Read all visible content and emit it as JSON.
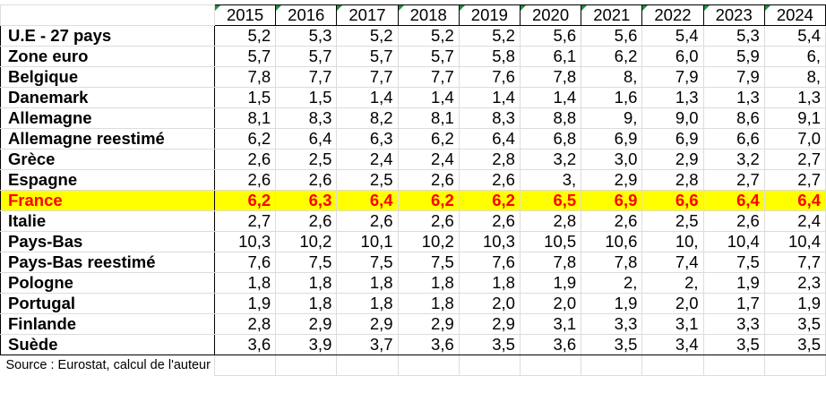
{
  "table": {
    "years": [
      "2015",
      "2016",
      "2017",
      "2018",
      "2019",
      "2020",
      "2021",
      "2022",
      "2023",
      "2024"
    ],
    "rows": [
      {
        "name": "U.E - 27 pays",
        "values": [
          "5,2",
          "5,3",
          "5,2",
          "5,2",
          "5,2",
          "5,6",
          "5,6",
          "5,4",
          "5,3",
          "5,4"
        ]
      },
      {
        "name": "Zone euro",
        "values": [
          "5,7",
          "5,7",
          "5,7",
          "5,7",
          "5,8",
          "6,1",
          "6,2",
          "6,0",
          "5,9",
          "6,"
        ]
      },
      {
        "name": "Belgique",
        "values": [
          "7,8",
          "7,7",
          "7,7",
          "7,7",
          "7,6",
          "7,8",
          "8,",
          "7,9",
          "7,9",
          "8,"
        ]
      },
      {
        "name": "Danemark",
        "values": [
          "1,5",
          "1,5",
          "1,4",
          "1,4",
          "1,4",
          "1,4",
          "1,6",
          "1,3",
          "1,3",
          "1,3"
        ]
      },
      {
        "name": "Allemagne",
        "values": [
          "8,1",
          "8,3",
          "8,2",
          "8,1",
          "8,3",
          "8,8",
          "9,",
          "9,0",
          "8,6",
          "9,1"
        ]
      },
      {
        "name": "Allemagne reestimé",
        "values": [
          "6,2",
          "6,4",
          "6,3",
          "6,2",
          "6,4",
          "6,8",
          "6,9",
          "6,9",
          "6,6",
          "7,0"
        ]
      },
      {
        "name": "Grèce",
        "values": [
          "2,6",
          "2,5",
          "2,4",
          "2,4",
          "2,8",
          "3,2",
          "3,0",
          "2,9",
          "3,2",
          "2,7"
        ]
      },
      {
        "name": "Espagne",
        "values": [
          "2,6",
          "2,6",
          "2,5",
          "2,6",
          "2,6",
          "3,",
          "2,9",
          "2,8",
          "2,7",
          "2,7"
        ]
      },
      {
        "name": "France",
        "values": [
          "6,2",
          "6,3",
          "6,4",
          "6,2",
          "6,2",
          "6,5",
          "6,9",
          "6,6",
          "6,4",
          "6,4"
        ],
        "highlight": true
      },
      {
        "name": "Italie",
        "values": [
          "2,7",
          "2,6",
          "2,6",
          "2,6",
          "2,6",
          "2,8",
          "2,6",
          "2,5",
          "2,6",
          "2,4"
        ]
      },
      {
        "name": "Pays-Bas",
        "values": [
          "10,3",
          "10,2",
          "10,1",
          "10,2",
          "10,3",
          "10,5",
          "10,6",
          "10,",
          "10,4",
          "10,4"
        ]
      },
      {
        "name": "Pays-Bas reestimé",
        "values": [
          "7,6",
          "7,5",
          "7,5",
          "7,5",
          "7,6",
          "7,8",
          "7,8",
          "7,4",
          "7,5",
          "7,7"
        ]
      },
      {
        "name": "Pologne",
        "values": [
          "1,8",
          "1,8",
          "1,8",
          "1,8",
          "1,8",
          "1,9",
          "2,",
          "2,",
          "1,9",
          "2,3"
        ]
      },
      {
        "name": "Portugal",
        "values": [
          "1,9",
          "1,8",
          "1,8",
          "1,8",
          "2,0",
          "2,0",
          "1,9",
          "2,0",
          "1,7",
          "1,9"
        ]
      },
      {
        "name": "Finlande",
        "values": [
          "2,8",
          "2,9",
          "2,9",
          "2,9",
          "2,9",
          "3,1",
          "3,3",
          "3,1",
          "3,3",
          "3,5"
        ]
      },
      {
        "name": "Suède",
        "values": [
          "3,6",
          "3,9",
          "3,7",
          "3,6",
          "3,5",
          "3,6",
          "3,5",
          "3,4",
          "3,5",
          "3,5"
        ]
      }
    ],
    "source": "Source : Eurostat, calcul de l'auteur"
  },
  "colors": {
    "highlight_background": "#ffff00",
    "highlight_text": "#ff0000",
    "cell_corner_marker": "#1e8e3e",
    "gridline": "#dcdcdc"
  }
}
